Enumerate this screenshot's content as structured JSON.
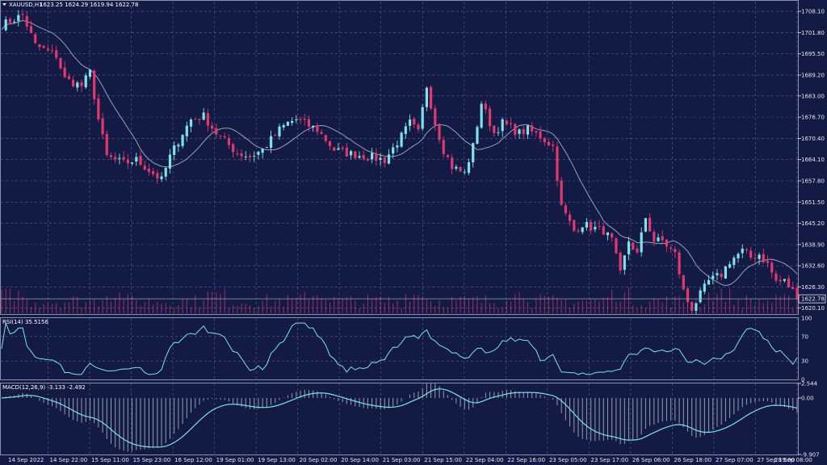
{
  "colors": {
    "background": "#131a44",
    "grid": "#5a6290",
    "bull": "#7fe3e6",
    "bear": "#e0386f",
    "ma": "#9aa0b8",
    "rsi": "#7fe3e6",
    "macd_line": "#7fe3e6",
    "macd_hist": "#c6c9d8",
    "text": "#e6e8f2"
  },
  "chart_data": {
    "type": "candlestick",
    "title": "XAUUSD,H1",
    "ohlc_header": "1623.25 1624.29 1619.94 1622.78",
    "current_price_label": "1622.78",
    "price_axis": {
      "ticks": [
        "1708.10",
        "1701.80",
        "1695.50",
        "1689.20",
        "1683.00",
        "1676.70",
        "1670.40",
        "1664.10",
        "1657.80",
        "1651.50",
        "1645.20",
        "1638.90",
        "1632.60",
        "1626.30",
        "1620.10"
      ],
      "ylim": [
        1618.5,
        1711.0
      ],
      "current_price": 1622.78
    },
    "x_axis": {
      "labels": [
        "14 Sep 2022",
        "14 Sep 22:00",
        "15 Sep 11:00",
        "15 Sep 23:00",
        "16 Sep 12:00",
        "19 Sep 01:00",
        "19 Sep 13:00",
        "20 Sep 02:00",
        "20 Sep 14:00",
        "21 Sep 03:00",
        "21 Sep 15:00",
        "22 Sep 04:00",
        "22 Sep 16:00",
        "23 Sep 05:00",
        "23 Sep 17:00",
        "26 Sep 06:00",
        "26 Sep 18:00",
        "27 Sep 07:00",
        "27 Sep 19:00",
        "28 Sep 08:00"
      ]
    },
    "price_path": [
      [
        0,
        1704
      ],
      [
        5,
        1707
      ],
      [
        8,
        1698
      ],
      [
        13,
        1695
      ],
      [
        15,
        1688
      ],
      [
        19,
        1686
      ],
      [
        21,
        1690
      ],
      [
        23,
        1676
      ],
      [
        25,
        1665
      ],
      [
        29,
        1663
      ],
      [
        32,
        1664
      ],
      [
        36,
        1660
      ],
      [
        38,
        1658
      ],
      [
        40,
        1665
      ],
      [
        43,
        1672
      ],
      [
        45,
        1676
      ],
      [
        48,
        1677
      ],
      [
        51,
        1672
      ],
      [
        56,
        1666
      ],
      [
        59,
        1665
      ],
      [
        62,
        1667
      ],
      [
        66,
        1673
      ],
      [
        68,
        1675
      ],
      [
        70,
        1676
      ],
      [
        75,
        1673
      ],
      [
        79,
        1667
      ],
      [
        82,
        1666
      ],
      [
        87,
        1665
      ],
      [
        91,
        1664
      ],
      [
        95,
        1671
      ],
      [
        97,
        1675
      ],
      [
        99,
        1672
      ],
      [
        101,
        1686
      ],
      [
        103,
        1675
      ],
      [
        105,
        1667
      ],
      [
        107,
        1662
      ],
      [
        110,
        1660
      ],
      [
        112,
        1668
      ],
      [
        114,
        1681
      ],
      [
        117,
        1672
      ],
      [
        119,
        1675
      ],
      [
        123,
        1672
      ],
      [
        125,
        1673
      ],
      [
        128,
        1671
      ],
      [
        131,
        1668
      ],
      [
        133,
        1650
      ],
      [
        136,
        1643
      ],
      [
        138,
        1645
      ],
      [
        140,
        1644
      ],
      [
        143,
        1643
      ],
      [
        145,
        1640
      ],
      [
        147,
        1630
      ],
      [
        149,
        1640
      ],
      [
        151,
        1636
      ],
      [
        153,
        1647
      ],
      [
        155,
        1640
      ],
      [
        157,
        1640
      ],
      [
        160,
        1636
      ],
      [
        162,
        1625
      ],
      [
        163,
        1622
      ],
      [
        164,
        1620
      ],
      [
        166,
        1624
      ],
      [
        168,
        1628
      ],
      [
        171,
        1630
      ],
      [
        173,
        1634
      ],
      [
        176,
        1637
      ],
      [
        178,
        1635
      ],
      [
        180,
        1636
      ],
      [
        182,
        1633
      ],
      [
        184,
        1628
      ],
      [
        186,
        1628
      ],
      [
        188,
        1625
      ],
      [
        189,
        1623
      ],
      [
        190,
        1623
      ]
    ],
    "rsi": {
      "label": "RSI(14) 35.5156",
      "period": 14,
      "levels": [
        100,
        70,
        30,
        0
      ],
      "ylim": [
        0,
        100
      ],
      "current": 35.5156
    },
    "macd": {
      "label": "MACD(12,26,9) -3.133 -2.492",
      "params": [
        12,
        26,
        9
      ],
      "main": -3.133,
      "signal": -2.492,
      "ticks": [
        "2.544",
        "0.00",
        "-9.907"
      ],
      "ylim": [
        -9.907,
        2.544
      ]
    }
  }
}
